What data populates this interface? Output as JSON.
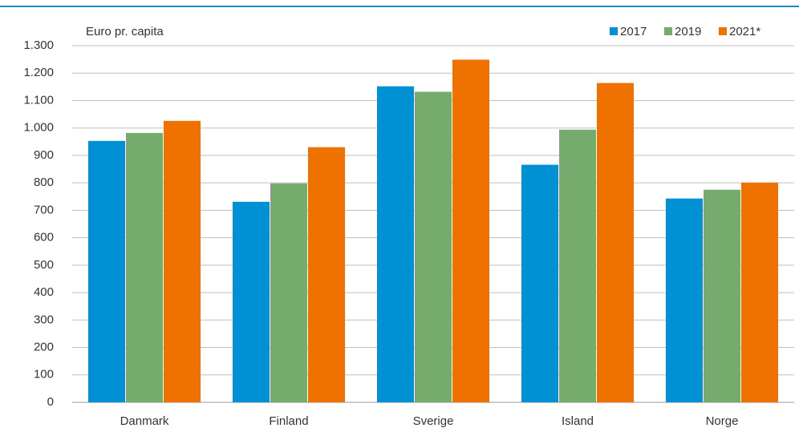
{
  "chart_data": {
    "type": "bar",
    "y_label": "Euro pr. capita",
    "categories": [
      "Danmark",
      "Finland",
      "Sverige",
      "Island",
      "Norge"
    ],
    "series": [
      {
        "name": "2017",
        "color": "#0091d5",
        "values": [
          953,
          731,
          1152,
          866,
          743
        ]
      },
      {
        "name": "2019",
        "color": "#76ab6e",
        "values": [
          982,
          798,
          1132,
          994,
          775
        ]
      },
      {
        "name": "2021*",
        "color": "#ef7100",
        "values": [
          1026,
          930,
          1249,
          1164,
          801
        ]
      }
    ],
    "ylim": [
      0,
      1300
    ],
    "yticks": [
      0,
      100,
      200,
      300,
      400,
      500,
      600,
      700,
      800,
      900,
      {
        "value": 1000,
        "label": "1.000"
      },
      {
        "value": 1100,
        "label": "1.100"
      },
      {
        "value": 1200,
        "label": "1.200"
      },
      {
        "value": 1300,
        "label": "1.300"
      }
    ],
    "grid": true,
    "legend": "top-right"
  }
}
